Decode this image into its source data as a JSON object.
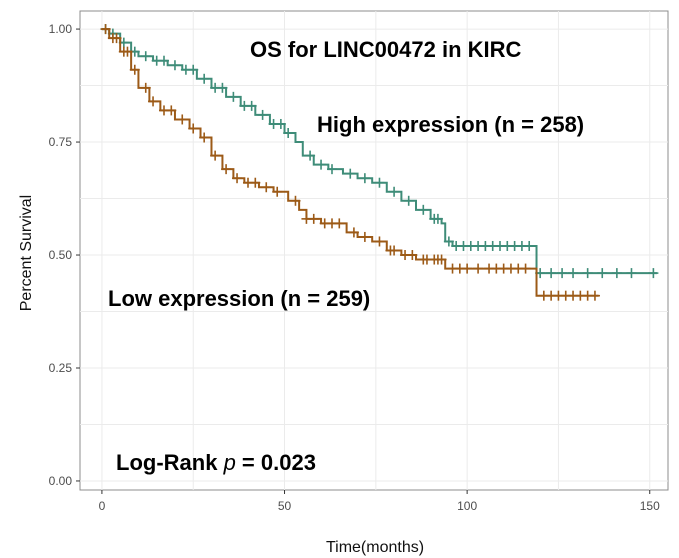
{
  "chart_data": {
    "type": "line",
    "title": "OS for LINC00472 in KIRC",
    "xlabel": "Time(months)",
    "ylabel": "Percent Survival",
    "xlim": [
      -6,
      155
    ],
    "ylim": [
      -0.02,
      1.04
    ],
    "x_ticks": [
      0,
      50,
      100,
      150
    ],
    "x_tick_labels": [
      "0",
      "50",
      "100",
      "150"
    ],
    "y_ticks": [
      0.0,
      0.25,
      0.5,
      0.75,
      1.0
    ],
    "y_tick_labels": [
      "0.00",
      "0.25",
      "0.50",
      "0.75",
      "1.00"
    ],
    "grid": true,
    "series": [
      {
        "name": "High expression (n = 258)",
        "color": "#3e8c78",
        "points": [
          [
            0,
            1.0
          ],
          [
            2,
            0.99
          ],
          [
            5,
            0.97
          ],
          [
            8,
            0.95
          ],
          [
            10,
            0.94
          ],
          [
            14,
            0.93
          ],
          [
            18,
            0.92
          ],
          [
            22,
            0.91
          ],
          [
            26,
            0.89
          ],
          [
            30,
            0.87
          ],
          [
            34,
            0.85
          ],
          [
            38,
            0.83
          ],
          [
            42,
            0.81
          ],
          [
            46,
            0.79
          ],
          [
            50,
            0.77
          ],
          [
            53,
            0.75
          ],
          [
            55,
            0.72
          ],
          [
            58,
            0.7
          ],
          [
            62,
            0.69
          ],
          [
            66,
            0.68
          ],
          [
            70,
            0.67
          ],
          [
            74,
            0.66
          ],
          [
            78,
            0.64
          ],
          [
            82,
            0.62
          ],
          [
            86,
            0.6
          ],
          [
            90,
            0.58
          ],
          [
            93,
            0.57
          ],
          [
            94,
            0.53
          ],
          [
            96,
            0.52
          ],
          [
            100,
            0.52
          ],
          [
            110,
            0.52
          ],
          [
            118,
            0.52
          ],
          [
            119,
            0.46
          ],
          [
            130,
            0.46
          ],
          [
            152,
            0.46
          ]
        ],
        "censor_x": [
          1,
          3,
          6,
          9,
          12,
          15,
          17,
          20,
          23,
          25,
          28,
          31,
          33,
          36,
          39,
          41,
          44,
          47,
          49,
          51,
          57,
          60,
          63,
          68,
          72,
          76,
          80,
          84,
          88,
          91,
          92,
          95,
          97,
          99,
          101,
          103,
          105,
          107,
          109,
          111,
          113,
          115,
          117,
          120,
          123,
          126,
          129,
          133,
          137,
          141,
          145,
          151
        ]
      },
      {
        "name": "Low expression (n = 259)",
        "color": "#9c5a17",
        "points": [
          [
            0,
            1.0
          ],
          [
            2,
            0.98
          ],
          [
            5,
            0.95
          ],
          [
            8,
            0.91
          ],
          [
            10,
            0.87
          ],
          [
            13,
            0.84
          ],
          [
            16,
            0.82
          ],
          [
            20,
            0.8
          ],
          [
            24,
            0.78
          ],
          [
            27,
            0.76
          ],
          [
            30,
            0.72
          ],
          [
            33,
            0.69
          ],
          [
            36,
            0.67
          ],
          [
            39,
            0.66
          ],
          [
            43,
            0.65
          ],
          [
            47,
            0.64
          ],
          [
            51,
            0.62
          ],
          [
            54,
            0.6
          ],
          [
            56,
            0.58
          ],
          [
            60,
            0.57
          ],
          [
            64,
            0.57
          ],
          [
            67,
            0.55
          ],
          [
            70,
            0.54
          ],
          [
            74,
            0.53
          ],
          [
            78,
            0.51
          ],
          [
            82,
            0.5
          ],
          [
            86,
            0.49
          ],
          [
            90,
            0.49
          ],
          [
            94,
            0.47
          ],
          [
            100,
            0.47
          ],
          [
            110,
            0.47
          ],
          [
            118,
            0.47
          ],
          [
            119,
            0.41
          ],
          [
            136,
            0.41
          ]
        ],
        "censor_x": [
          1,
          3,
          4,
          6,
          7,
          9,
          12,
          14,
          17,
          19,
          22,
          25,
          28,
          31,
          34,
          37,
          40,
          42,
          45,
          48,
          53,
          56,
          58,
          61,
          63,
          65,
          69,
          72,
          76,
          79,
          80,
          83,
          85,
          88,
          89,
          91,
          92,
          93,
          96,
          98,
          100,
          103,
          106,
          108,
          110,
          112,
          114,
          116,
          121,
          123,
          125,
          127,
          129,
          131,
          133,
          135
        ]
      }
    ],
    "annotations": [
      {
        "text": "OS for LINC00472 in KIRC"
      },
      {
        "text": "High expression (n = 258)"
      },
      {
        "text": "Low expression (n = 259)"
      },
      {
        "prefix": "Log-Rank ",
        "p_symbol": "p",
        "suffix": " = 0.023"
      }
    ]
  }
}
